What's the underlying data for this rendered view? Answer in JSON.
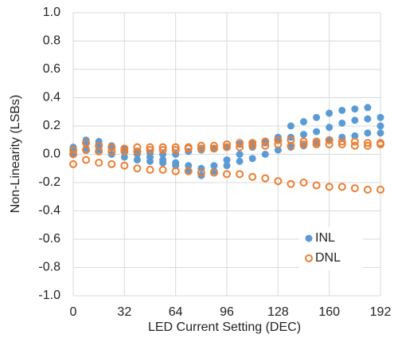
{
  "chart_data": {
    "type": "scatter",
    "xlabel": "LED Current Setting (DEC)",
    "ylabel": "Non-Linearity (LSBs)",
    "xlim": [
      0,
      192
    ],
    "xticks": [
      0,
      32,
      64,
      96,
      128,
      160,
      192
    ],
    "ylim": [
      -1,
      1
    ],
    "yticks": [
      {
        "value": -1,
        "label": "-1.0"
      },
      {
        "value": -0.8,
        "label": "-0.8"
      },
      {
        "value": -0.6,
        "label": "-0.6"
      },
      {
        "value": -0.4,
        "label": "-0.4"
      },
      {
        "value": -0.2,
        "label": "-0.2"
      },
      {
        "value": 0,
        "label": "0.0"
      },
      {
        "value": 0.2,
        "label": "0.2"
      },
      {
        "value": 0.4,
        "label": "0.4"
      },
      {
        "value": 0.6,
        "label": "0.6"
      },
      {
        "value": 0.8,
        "label": "0.8"
      },
      {
        "value": 1,
        "label": "1.0"
      }
    ],
    "grid": true,
    "legend": "lower right",
    "series": [
      {
        "name": "INL",
        "color": "#5b9bd5",
        "filled": true,
        "x": [
          0,
          8,
          16,
          24,
          32,
          40,
          48,
          56,
          64,
          72,
          80,
          88,
          96,
          104,
          112,
          120,
          128,
          136,
          144,
          152,
          160,
          168,
          176,
          184,
          192,
          0,
          8,
          16,
          24,
          32,
          40,
          48,
          56,
          64,
          72,
          80,
          88,
          96,
          104,
          112,
          120,
          128,
          136,
          144,
          152,
          160,
          168,
          176,
          184,
          192,
          0,
          8,
          16,
          24,
          32,
          40,
          48,
          56,
          64,
          72,
          80,
          88,
          96,
          104,
          112,
          120,
          128,
          136,
          144,
          152,
          160,
          168,
          176,
          184,
          192
        ],
        "values": [
          0.05,
          0.1,
          0.09,
          0.06,
          0.03,
          0.0,
          -0.02,
          -0.04,
          -0.06,
          -0.08,
          -0.1,
          -0.08,
          -0.04,
          0.0,
          0.05,
          0.08,
          0.12,
          0.2,
          0.23,
          0.26,
          0.29,
          0.31,
          0.32,
          0.33,
          0.26,
          0.0,
          0.08,
          0.07,
          0.05,
          0.04,
          0.02,
          0.01,
          0.0,
          0.0,
          0.02,
          0.03,
          0.04,
          0.05,
          0.07,
          0.08,
          0.09,
          0.1,
          0.12,
          0.14,
          0.16,
          0.19,
          0.22,
          0.24,
          0.25,
          0.2,
          0.02,
          0.04,
          0.03,
          0.0,
          -0.02,
          -0.04,
          -0.05,
          -0.06,
          -0.08,
          -0.12,
          -0.15,
          -0.12,
          -0.08,
          -0.05,
          -0.03,
          0.0,
          0.03,
          0.05,
          0.06,
          0.08,
          0.1,
          0.12,
          0.13,
          0.15,
          0.15
        ]
      },
      {
        "name": "DNL",
        "color": "#ed7d31",
        "filled": false,
        "x": [
          0,
          8,
          16,
          24,
          32,
          40,
          48,
          56,
          64,
          72,
          80,
          88,
          96,
          104,
          112,
          120,
          128,
          136,
          144,
          152,
          160,
          168,
          176,
          184,
          192,
          0,
          8,
          16,
          24,
          32,
          40,
          48,
          56,
          64,
          72,
          80,
          88,
          96,
          104,
          112,
          120,
          128,
          136,
          144,
          152,
          160,
          168,
          176,
          184,
          192,
          0,
          8,
          16,
          24,
          32,
          40,
          48,
          56,
          64,
          72,
          80,
          88,
          96,
          104,
          112,
          120,
          128,
          136,
          144,
          152,
          160,
          168,
          176,
          184,
          192
        ],
        "values": [
          -0.07,
          -0.04,
          -0.06,
          -0.07,
          -0.08,
          -0.1,
          -0.11,
          -0.11,
          -0.12,
          -0.12,
          -0.13,
          -0.13,
          -0.14,
          -0.14,
          -0.16,
          -0.17,
          -0.19,
          -0.21,
          -0.2,
          -0.22,
          -0.23,
          -0.23,
          -0.24,
          -0.25,
          -0.25,
          0.03,
          0.08,
          0.06,
          0.05,
          0.04,
          0.05,
          0.05,
          0.05,
          0.05,
          0.05,
          0.06,
          0.06,
          0.07,
          0.08,
          0.08,
          0.09,
          0.1,
          0.1,
          0.09,
          0.09,
          0.1,
          0.09,
          0.09,
          0.08,
          0.08,
          0.0,
          0.03,
          0.02,
          0.02,
          0.02,
          0.02,
          0.03,
          0.03,
          0.03,
          0.04,
          0.04,
          0.04,
          0.05,
          0.05,
          0.06,
          0.06,
          0.07,
          0.06,
          0.07,
          0.07,
          0.07,
          0.07,
          0.06,
          0.06,
          0.07
        ]
      }
    ]
  }
}
